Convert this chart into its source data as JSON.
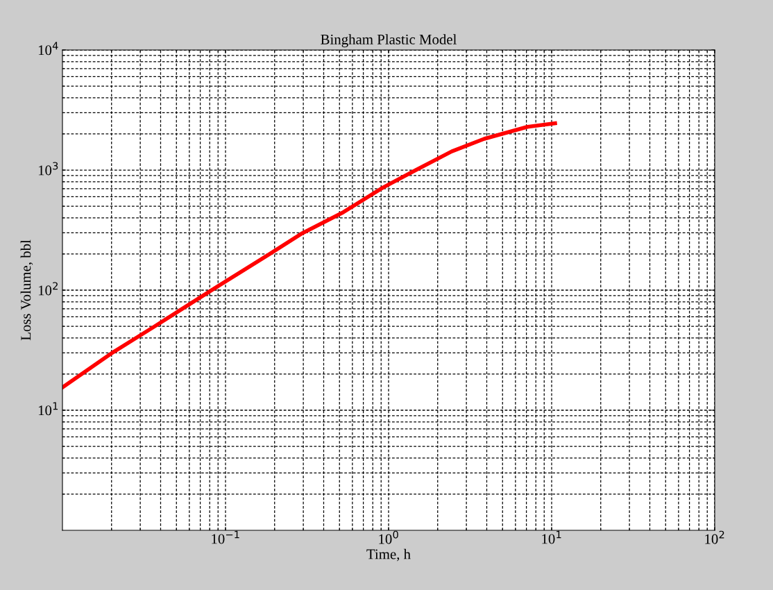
{
  "chart_data": {
    "type": "line",
    "title": "Bingham Plastic Model",
    "xlabel": "Time, h",
    "ylabel": "Loss Volume, bbl",
    "log": "xy",
    "grid": true,
    "marker": "none",
    "line_style": "solid",
    "xlim": [
      0.01,
      100
    ],
    "ylim": [
      1,
      10000
    ],
    "xticks": [
      {
        "value": 0.1,
        "label": "10$^{−1}$"
      },
      {
        "value": 1,
        "label": "10$^{0}$"
      },
      {
        "value": 10,
        "label": "10$^{1}$"
      },
      {
        "value": 100,
        "label": "10$^{2}$"
      }
    ],
    "yticks": [
      {
        "value": 10,
        "label": "10$^{1}$"
      },
      {
        "value": 100,
        "label": "10$^{2}$"
      },
      {
        "value": 1000,
        "label": "10$^{3}$"
      },
      {
        "value": 10000,
        "label": "10$^{4}$"
      }
    ],
    "series": [
      {
        "color": "#ff0000",
        "x": [
          0.01,
          0.02,
          0.0363,
          0.087,
          0.183,
          0.296,
          0.528,
          0.925,
          1.47,
          2.44,
          3.86,
          7.1,
          10.5
        ],
        "values": [
          15.5,
          29.8,
          49.4,
          105,
          197,
          298,
          446,
          716,
          1000,
          1430,
          1820,
          2290,
          2450
        ]
      }
    ]
  }
}
